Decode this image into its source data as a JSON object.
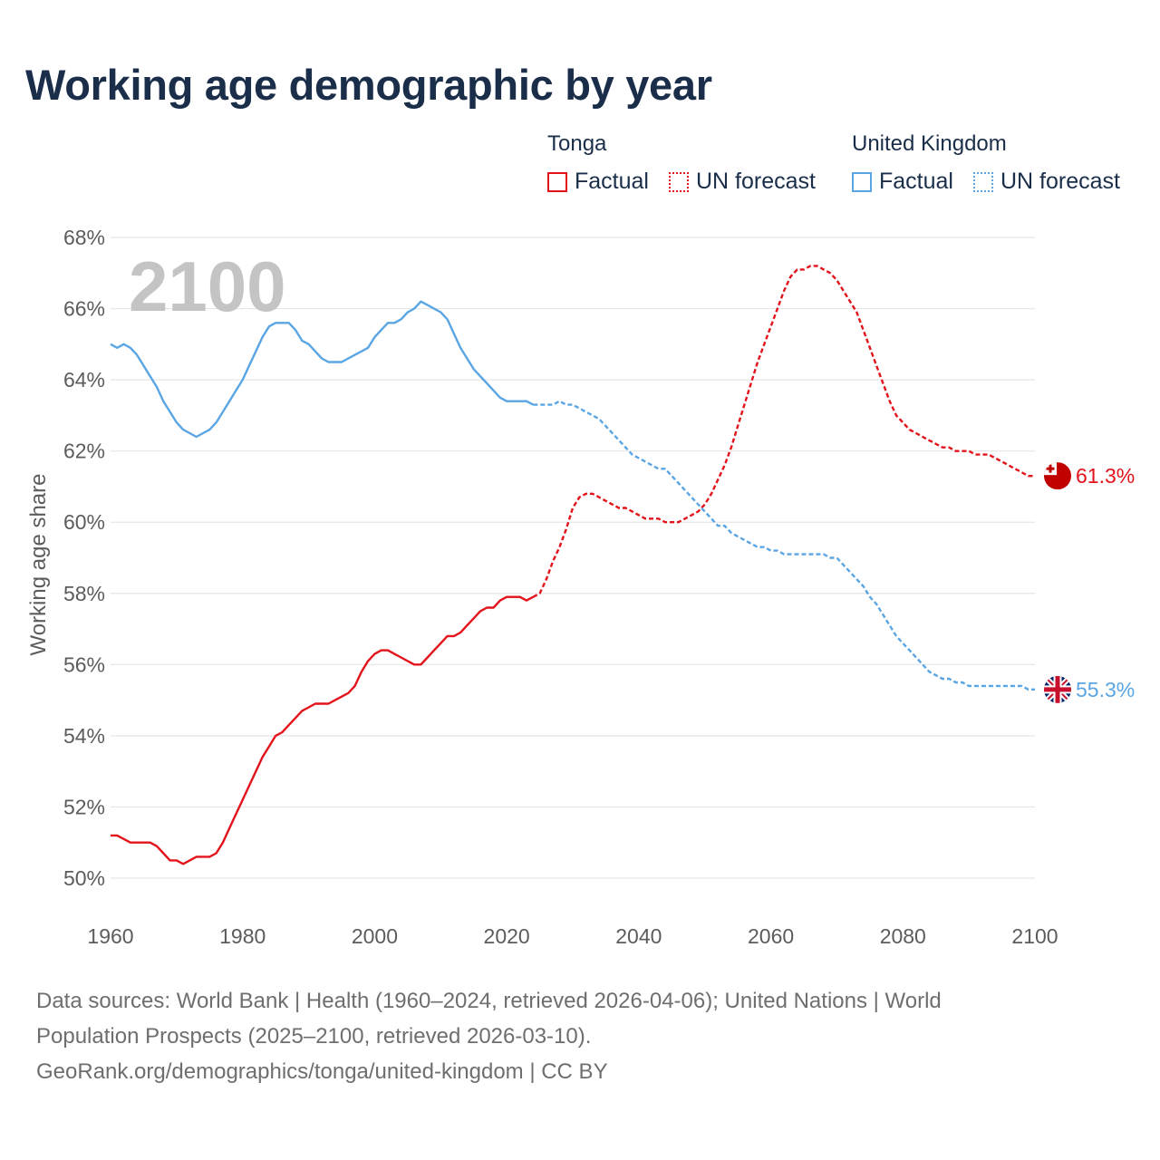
{
  "title": "Working age demographic by year",
  "legend": {
    "groups": [
      {
        "name": "Tonga",
        "color": "#e3131b",
        "factual_label": "Factual",
        "forecast_label": "UN forecast"
      },
      {
        "name": "United Kingdom",
        "color": "#5aa5e3",
        "factual_label": "Factual",
        "forecast_label": "UN forecast"
      }
    ]
  },
  "footer": {
    "line1": "Data sources: World Bank | Health (1960–2024, retrieved 2026-04-06); United Nations | World",
    "line2": "Population Prospects (2025–2100, retrieved 2026-03-10).",
    "line3": "GeoRank.org/demographics/tonga/united-kingdom | CC BY"
  },
  "chart_data": {
    "type": "line",
    "title": "Working age demographic by year",
    "year_watermark": "2100",
    "xlabel": "",
    "ylabel": "Working age share",
    "xlim": [
      1960,
      2100
    ],
    "ylim": [
      50,
      68
    ],
    "x_ticks": [
      "1960",
      "1980",
      "2000",
      "2020",
      "2040",
      "2060",
      "2080",
      "2100"
    ],
    "y_ticks": [
      "50%",
      "52%",
      "54%",
      "56%",
      "58%",
      "60%",
      "62%",
      "64%",
      "66%",
      "68%"
    ],
    "grid": true,
    "forecast_start": 2024,
    "series": [
      {
        "name": "Tonga",
        "color": "#e3131b",
        "end_label": "61.3%",
        "points": [
          [
            1960,
            51.2
          ],
          [
            1961,
            51.2
          ],
          [
            1962,
            51.1
          ],
          [
            1963,
            51.0
          ],
          [
            1964,
            51.0
          ],
          [
            1965,
            51.0
          ],
          [
            1966,
            51.0
          ],
          [
            1967,
            50.9
          ],
          [
            1968,
            50.7
          ],
          [
            1969,
            50.5
          ],
          [
            1970,
            50.5
          ],
          [
            1971,
            50.4
          ],
          [
            1972,
            50.5
          ],
          [
            1973,
            50.6
          ],
          [
            1974,
            50.6
          ],
          [
            1975,
            50.6
          ],
          [
            1976,
            50.7
          ],
          [
            1977,
            51.0
          ],
          [
            1978,
            51.4
          ],
          [
            1979,
            51.8
          ],
          [
            1980,
            52.2
          ],
          [
            1981,
            52.6
          ],
          [
            1982,
            53.0
          ],
          [
            1983,
            53.4
          ],
          [
            1984,
            53.7
          ],
          [
            1985,
            54.0
          ],
          [
            1986,
            54.1
          ],
          [
            1987,
            54.3
          ],
          [
            1988,
            54.5
          ],
          [
            1989,
            54.7
          ],
          [
            1990,
            54.8
          ],
          [
            1991,
            54.9
          ],
          [
            1992,
            54.9
          ],
          [
            1993,
            54.9
          ],
          [
            1994,
            55.0
          ],
          [
            1995,
            55.1
          ],
          [
            1996,
            55.2
          ],
          [
            1997,
            55.4
          ],
          [
            1998,
            55.8
          ],
          [
            1999,
            56.1
          ],
          [
            2000,
            56.3
          ],
          [
            2001,
            56.4
          ],
          [
            2002,
            56.4
          ],
          [
            2003,
            56.3
          ],
          [
            2004,
            56.2
          ],
          [
            2005,
            56.1
          ],
          [
            2006,
            56.0
          ],
          [
            2007,
            56.0
          ],
          [
            2008,
            56.2
          ],
          [
            2009,
            56.4
          ],
          [
            2010,
            56.6
          ],
          [
            2011,
            56.8
          ],
          [
            2012,
            56.8
          ],
          [
            2013,
            56.9
          ],
          [
            2014,
            57.1
          ],
          [
            2015,
            57.3
          ],
          [
            2016,
            57.5
          ],
          [
            2017,
            57.6
          ],
          [
            2018,
            57.6
          ],
          [
            2019,
            57.8
          ],
          [
            2020,
            57.9
          ],
          [
            2021,
            57.9
          ],
          [
            2022,
            57.9
          ],
          [
            2023,
            57.8
          ],
          [
            2024,
            57.9
          ],
          [
            2025,
            58.0
          ],
          [
            2026,
            58.4
          ],
          [
            2027,
            58.9
          ],
          [
            2028,
            59.3
          ],
          [
            2029,
            59.8
          ],
          [
            2030,
            60.4
          ],
          [
            2031,
            60.7
          ],
          [
            2032,
            60.8
          ],
          [
            2033,
            60.8
          ],
          [
            2034,
            60.7
          ],
          [
            2035,
            60.6
          ],
          [
            2036,
            60.5
          ],
          [
            2037,
            60.4
          ],
          [
            2038,
            60.4
          ],
          [
            2039,
            60.3
          ],
          [
            2040,
            60.2
          ],
          [
            2041,
            60.1
          ],
          [
            2042,
            60.1
          ],
          [
            2043,
            60.1
          ],
          [
            2044,
            60.0
          ],
          [
            2045,
            60.0
          ],
          [
            2046,
            60.0
          ],
          [
            2047,
            60.1
          ],
          [
            2048,
            60.2
          ],
          [
            2049,
            60.3
          ],
          [
            2050,
            60.5
          ],
          [
            2051,
            60.8
          ],
          [
            2052,
            61.2
          ],
          [
            2053,
            61.6
          ],
          [
            2054,
            62.1
          ],
          [
            2055,
            62.7
          ],
          [
            2056,
            63.3
          ],
          [
            2057,
            63.9
          ],
          [
            2058,
            64.5
          ],
          [
            2059,
            65.0
          ],
          [
            2060,
            65.5
          ],
          [
            2061,
            66.0
          ],
          [
            2062,
            66.5
          ],
          [
            2063,
            66.9
          ],
          [
            2064,
            67.1
          ],
          [
            2065,
            67.1
          ],
          [
            2066,
            67.2
          ],
          [
            2067,
            67.2
          ],
          [
            2068,
            67.1
          ],
          [
            2069,
            67.0
          ],
          [
            2070,
            66.8
          ],
          [
            2071,
            66.5
          ],
          [
            2072,
            66.2
          ],
          [
            2073,
            65.9
          ],
          [
            2074,
            65.4
          ],
          [
            2075,
            64.9
          ],
          [
            2076,
            64.4
          ],
          [
            2077,
            63.9
          ],
          [
            2078,
            63.4
          ],
          [
            2079,
            63.0
          ],
          [
            2080,
            62.8
          ],
          [
            2081,
            62.6
          ],
          [
            2082,
            62.5
          ],
          [
            2083,
            62.4
          ],
          [
            2084,
            62.3
          ],
          [
            2085,
            62.2
          ],
          [
            2086,
            62.1
          ],
          [
            2087,
            62.1
          ],
          [
            2088,
            62.0
          ],
          [
            2089,
            62.0
          ],
          [
            2090,
            62.0
          ],
          [
            2091,
            61.9
          ],
          [
            2092,
            61.9
          ],
          [
            2093,
            61.9
          ],
          [
            2094,
            61.8
          ],
          [
            2095,
            61.7
          ],
          [
            2096,
            61.6
          ],
          [
            2097,
            61.5
          ],
          [
            2098,
            61.4
          ],
          [
            2099,
            61.3
          ],
          [
            2100,
            61.3
          ]
        ]
      },
      {
        "name": "United Kingdom",
        "color": "#5aa5e3",
        "end_label": "55.3%",
        "points": [
          [
            1960,
            65.0
          ],
          [
            1961,
            64.9
          ],
          [
            1962,
            65.0
          ],
          [
            1963,
            64.9
          ],
          [
            1964,
            64.7
          ],
          [
            1965,
            64.4
          ],
          [
            1966,
            64.1
          ],
          [
            1967,
            63.8
          ],
          [
            1968,
            63.4
          ],
          [
            1969,
            63.1
          ],
          [
            1970,
            62.8
          ],
          [
            1971,
            62.6
          ],
          [
            1972,
            62.5
          ],
          [
            1973,
            62.4
          ],
          [
            1974,
            62.5
          ],
          [
            1975,
            62.6
          ],
          [
            1976,
            62.8
          ],
          [
            1977,
            63.1
          ],
          [
            1978,
            63.4
          ],
          [
            1979,
            63.7
          ],
          [
            1980,
            64.0
          ],
          [
            1981,
            64.4
          ],
          [
            1982,
            64.8
          ],
          [
            1983,
            65.2
          ],
          [
            1984,
            65.5
          ],
          [
            1985,
            65.6
          ],
          [
            1986,
            65.6
          ],
          [
            1987,
            65.6
          ],
          [
            1988,
            65.4
          ],
          [
            1989,
            65.1
          ],
          [
            1990,
            65.0
          ],
          [
            1991,
            64.8
          ],
          [
            1992,
            64.6
          ],
          [
            1993,
            64.5
          ],
          [
            1994,
            64.5
          ],
          [
            1995,
            64.5
          ],
          [
            1996,
            64.6
          ],
          [
            1997,
            64.7
          ],
          [
            1998,
            64.8
          ],
          [
            1999,
            64.9
          ],
          [
            2000,
            65.2
          ],
          [
            2001,
            65.4
          ],
          [
            2002,
            65.6
          ],
          [
            2003,
            65.6
          ],
          [
            2004,
            65.7
          ],
          [
            2005,
            65.9
          ],
          [
            2006,
            66.0
          ],
          [
            2007,
            66.2
          ],
          [
            2008,
            66.1
          ],
          [
            2009,
            66.0
          ],
          [
            2010,
            65.9
          ],
          [
            2011,
            65.7
          ],
          [
            2012,
            65.3
          ],
          [
            2013,
            64.9
          ],
          [
            2014,
            64.6
          ],
          [
            2015,
            64.3
          ],
          [
            2016,
            64.1
          ],
          [
            2017,
            63.9
          ],
          [
            2018,
            63.7
          ],
          [
            2019,
            63.5
          ],
          [
            2020,
            63.4
          ],
          [
            2021,
            63.4
          ],
          [
            2022,
            63.4
          ],
          [
            2023,
            63.4
          ],
          [
            2024,
            63.3
          ],
          [
            2025,
            63.3
          ],
          [
            2026,
            63.3
          ],
          [
            2027,
            63.3
          ],
          [
            2028,
            63.4
          ],
          [
            2029,
            63.3
          ],
          [
            2030,
            63.3
          ],
          [
            2031,
            63.2
          ],
          [
            2032,
            63.1
          ],
          [
            2033,
            63.0
          ],
          [
            2034,
            62.9
          ],
          [
            2035,
            62.7
          ],
          [
            2036,
            62.5
          ],
          [
            2037,
            62.3
          ],
          [
            2038,
            62.1
          ],
          [
            2039,
            61.9
          ],
          [
            2040,
            61.8
          ],
          [
            2041,
            61.7
          ],
          [
            2042,
            61.6
          ],
          [
            2043,
            61.5
          ],
          [
            2044,
            61.5
          ],
          [
            2045,
            61.3
          ],
          [
            2046,
            61.1
          ],
          [
            2047,
            60.9
          ],
          [
            2048,
            60.7
          ],
          [
            2049,
            60.5
          ],
          [
            2050,
            60.3
          ],
          [
            2051,
            60.1
          ],
          [
            2052,
            59.9
          ],
          [
            2053,
            59.9
          ],
          [
            2054,
            59.7
          ],
          [
            2055,
            59.6
          ],
          [
            2056,
            59.5
          ],
          [
            2057,
            59.4
          ],
          [
            2058,
            59.3
          ],
          [
            2059,
            59.3
          ],
          [
            2060,
            59.2
          ],
          [
            2061,
            59.2
          ],
          [
            2062,
            59.1
          ],
          [
            2063,
            59.1
          ],
          [
            2064,
            59.1
          ],
          [
            2065,
            59.1
          ],
          [
            2066,
            59.1
          ],
          [
            2067,
            59.1
          ],
          [
            2068,
            59.1
          ],
          [
            2069,
            59.0
          ],
          [
            2070,
            59.0
          ],
          [
            2071,
            58.8
          ],
          [
            2072,
            58.6
          ],
          [
            2073,
            58.4
          ],
          [
            2074,
            58.2
          ],
          [
            2075,
            57.9
          ],
          [
            2076,
            57.7
          ],
          [
            2077,
            57.4
          ],
          [
            2078,
            57.1
          ],
          [
            2079,
            56.8
          ],
          [
            2080,
            56.6
          ],
          [
            2081,
            56.4
          ],
          [
            2082,
            56.2
          ],
          [
            2083,
            56.0
          ],
          [
            2084,
            55.8
          ],
          [
            2085,
            55.7
          ],
          [
            2086,
            55.6
          ],
          [
            2087,
            55.6
          ],
          [
            2088,
            55.5
          ],
          [
            2089,
            55.5
          ],
          [
            2090,
            55.4
          ],
          [
            2091,
            55.4
          ],
          [
            2092,
            55.4
          ],
          [
            2093,
            55.4
          ],
          [
            2094,
            55.4
          ],
          [
            2095,
            55.4
          ],
          [
            2096,
            55.4
          ],
          [
            2097,
            55.4
          ],
          [
            2098,
            55.4
          ],
          [
            2099,
            55.3
          ],
          [
            2100,
            55.3
          ]
        ]
      }
    ]
  }
}
